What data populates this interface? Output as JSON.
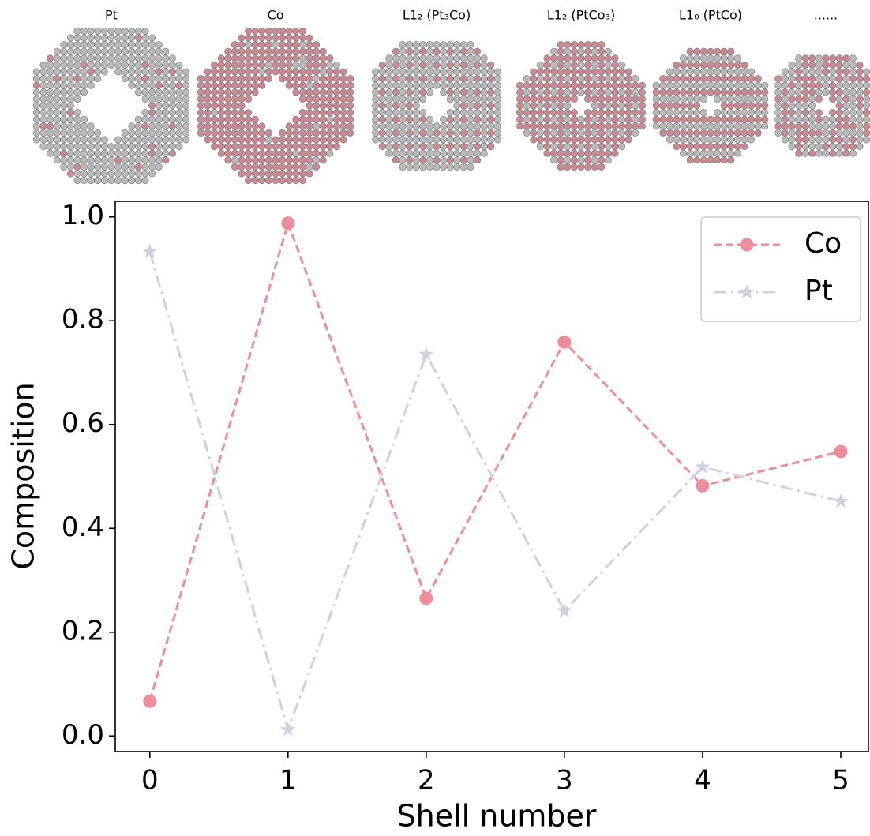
{
  "structures": [
    "Pt",
    "Co",
    "L1₂ (Pt₃Co)",
    "L1₂ (PtCo₃)",
    "L1₀ (PtCo)",
    "......"
  ],
  "chart_data": {
    "type": "line",
    "xlabel": "Shell number",
    "ylabel": "Composition",
    "x": [
      0,
      1,
      2,
      3,
      4,
      5
    ],
    "series": [
      {
        "name": "Co",
        "color": "#ef8d9c",
        "marker": "circle",
        "linestyle": "dashed",
        "values": [
          0.067,
          0.988,
          0.265,
          0.759,
          0.482,
          0.548
        ]
      },
      {
        "name": "Pt",
        "color": "#d2d0de",
        "marker": "star",
        "linestyle": "dashdot",
        "values": [
          0.933,
          0.012,
          0.735,
          0.241,
          0.518,
          0.452
        ]
      }
    ],
    "xlim": [
      -0.25,
      5.2
    ],
    "ylim": [
      -0.03,
      1.03
    ],
    "xticks": [
      0,
      1,
      2,
      3,
      4,
      5
    ],
    "yticks": [
      {
        "value": 0,
        "label": "0.0"
      },
      {
        "value": 0.2,
        "label": "0.2"
      },
      {
        "value": 0.4,
        "label": "0.4"
      },
      {
        "value": 0.6,
        "label": "0.6"
      },
      {
        "value": 0.8,
        "label": "0.8"
      },
      {
        "value": 1,
        "label": "1.0"
      }
    ],
    "legend": "upper right"
  }
}
